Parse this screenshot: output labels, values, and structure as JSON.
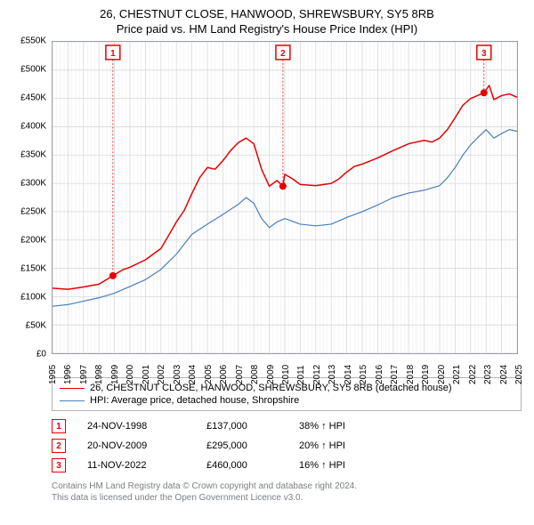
{
  "title1": "26, CHESTNUT CLOSE, HANWOOD, SHREWSBURY, SY5 8RB",
  "title2": "Price paid vs. HM Land Registry's House Price Index (HPI)",
  "chart": {
    "type": "line",
    "ylim": [
      0,
      550000
    ],
    "ytick_step": 50000,
    "ytick_labels": [
      "£0",
      "£50K",
      "£100K",
      "£150K",
      "£200K",
      "£250K",
      "£300K",
      "£350K",
      "£400K",
      "£450K",
      "£500K",
      "£550K"
    ],
    "xlim": [
      1995,
      2025
    ],
    "xtick_step": 1,
    "xtick_labels": [
      "1995",
      "1996",
      "1997",
      "1998",
      "1999",
      "2000",
      "2001",
      "2002",
      "2003",
      "2004",
      "2005",
      "2006",
      "2007",
      "2008",
      "2009",
      "2010",
      "2011",
      "2012",
      "2013",
      "2014",
      "2015",
      "2016",
      "2017",
      "2018",
      "2019",
      "2020",
      "2021",
      "2022",
      "2023",
      "2024",
      "2025"
    ],
    "background_color": "#ffffff",
    "grid_major_color": "#d6d8db",
    "grid_minor_color": "#ececef",
    "axis_color": "#9aa0a6",
    "series": [
      {
        "name": "26, CHESTNUT CLOSE, HANWOOD, SHREWSBURY, SY5 8RB (detached house)",
        "color": "#e60000",
        "line_width": 1.5,
        "data": [
          [
            1995,
            115000
          ],
          [
            1996,
            113000
          ],
          [
            1997,
            117000
          ],
          [
            1998,
            122000
          ],
          [
            1998.9,
            137000
          ],
          [
            1999.5,
            147000
          ],
          [
            2000,
            152000
          ],
          [
            2001,
            165000
          ],
          [
            2002,
            185000
          ],
          [
            2002.5,
            208000
          ],
          [
            2003,
            232000
          ],
          [
            2003.5,
            252000
          ],
          [
            2004,
            282000
          ],
          [
            2004.5,
            310000
          ],
          [
            2005,
            328000
          ],
          [
            2005.5,
            325000
          ],
          [
            2006,
            340000
          ],
          [
            2006.5,
            358000
          ],
          [
            2007,
            372000
          ],
          [
            2007.5,
            380000
          ],
          [
            2008,
            370000
          ],
          [
            2008.5,
            325000
          ],
          [
            2009,
            295000
          ],
          [
            2009.5,
            305000
          ],
          [
            2009.88,
            295000
          ],
          [
            2010,
            316000
          ],
          [
            2010.5,
            308000
          ],
          [
            2011,
            298000
          ],
          [
            2012,
            296000
          ],
          [
            2013,
            300000
          ],
          [
            2013.5,
            308000
          ],
          [
            2014,
            320000
          ],
          [
            2014.5,
            330000
          ],
          [
            2015,
            334000
          ],
          [
            2016,
            345000
          ],
          [
            2017,
            358000
          ],
          [
            2018,
            370000
          ],
          [
            2019,
            376000
          ],
          [
            2019.5,
            373000
          ],
          [
            2020,
            380000
          ],
          [
            2020.5,
            395000
          ],
          [
            2021,
            416000
          ],
          [
            2021.5,
            438000
          ],
          [
            2022,
            450000
          ],
          [
            2022.86,
            460000
          ],
          [
            2023.2,
            473000
          ],
          [
            2023.5,
            448000
          ],
          [
            2024,
            455000
          ],
          [
            2024.5,
            458000
          ],
          [
            2025,
            452000
          ]
        ]
      },
      {
        "name": "HPI: Average price, detached house, Shropshire",
        "color": "#4a7ebb",
        "line_width": 1.2,
        "data": [
          [
            1995,
            83000
          ],
          [
            1996,
            86000
          ],
          [
            1997,
            92000
          ],
          [
            1998,
            98000
          ],
          [
            1999,
            106000
          ],
          [
            2000,
            118000
          ],
          [
            2001,
            130000
          ],
          [
            2002,
            148000
          ],
          [
            2003,
            175000
          ],
          [
            2004,
            210000
          ],
          [
            2005,
            228000
          ],
          [
            2006,
            245000
          ],
          [
            2007,
            263000
          ],
          [
            2007.5,
            275000
          ],
          [
            2008,
            265000
          ],
          [
            2008.5,
            238000
          ],
          [
            2009,
            222000
          ],
          [
            2009.5,
            232000
          ],
          [
            2010,
            238000
          ],
          [
            2011,
            228000
          ],
          [
            2012,
            225000
          ],
          [
            2013,
            228000
          ],
          [
            2014,
            240000
          ],
          [
            2015,
            250000
          ],
          [
            2016,
            262000
          ],
          [
            2017,
            275000
          ],
          [
            2018,
            283000
          ],
          [
            2019,
            288000
          ],
          [
            2020,
            296000
          ],
          [
            2020.5,
            310000
          ],
          [
            2021,
            328000
          ],
          [
            2021.5,
            350000
          ],
          [
            2022,
            368000
          ],
          [
            2022.5,
            382000
          ],
          [
            2023,
            395000
          ],
          [
            2023.5,
            380000
          ],
          [
            2024,
            388000
          ],
          [
            2024.5,
            395000
          ],
          [
            2025,
            392000
          ]
        ]
      }
    ],
    "markers": [
      {
        "num": "1",
        "x": 1998.9,
        "y": 137000,
        "date": "24-NOV-1998",
        "price": "£137,000",
        "pct": "38% ↑ HPI",
        "box_color": "#e60000"
      },
      {
        "num": "2",
        "x": 2009.88,
        "y": 295000,
        "date": "20-NOV-2009",
        "price": "£295,000",
        "pct": "20% ↑ HPI",
        "box_color": "#e60000"
      },
      {
        "num": "3",
        "x": 2022.86,
        "y": 460000,
        "date": "11-NOV-2022",
        "price": "£460,000",
        "pct": "16% ↑ HPI",
        "box_color": "#e60000"
      }
    ]
  },
  "legend_header": {
    "swatch_width": 28
  },
  "footnote1": "Contains HM Land Registry data © Crown copyright and database right 2024.",
  "footnote2": "This data is licensed under the Open Government Licence v3.0."
}
